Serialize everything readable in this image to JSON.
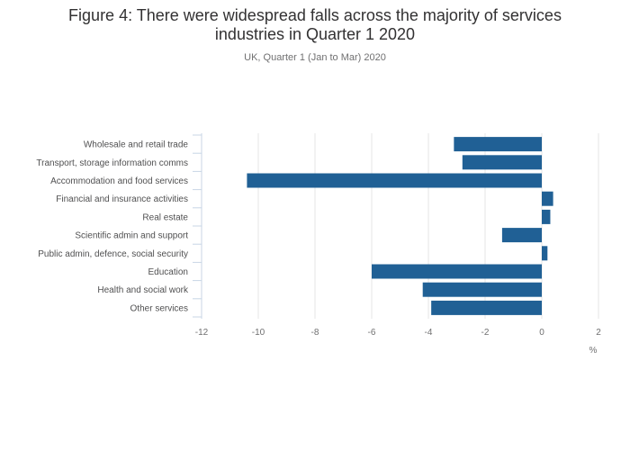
{
  "chart_data": {
    "type": "bar",
    "orientation": "horizontal",
    "title": "Figure 4: There were widespread falls across the majority of services industries in Quarter 1 2020",
    "subtitle": "UK, Quarter 1 (Jan to Mar) 2020",
    "xlabel": "%",
    "ylabel": "",
    "categories": [
      "Wholesale and retail trade",
      "Transport, storage information comms",
      "Accommodation and food services",
      "Financial and insurance activities",
      "Real estate",
      "Scientific admin and support",
      "Public admin, defence, social security",
      "Education",
      "Health and social work",
      "Other services"
    ],
    "values": [
      -3.1,
      -2.8,
      -10.4,
      0.4,
      0.3,
      -1.4,
      0.2,
      -6.0,
      -4.2,
      -3.9
    ],
    "xlim": [
      -12,
      2
    ],
    "xticks": [
      -12,
      -10,
      -8,
      -6,
      -4,
      -2,
      0,
      2
    ],
    "grid": true,
    "legend": "none",
    "bar_color": "#206095",
    "grid_color": "#e6e6e6",
    "axis_color": "#c8d6e5"
  }
}
